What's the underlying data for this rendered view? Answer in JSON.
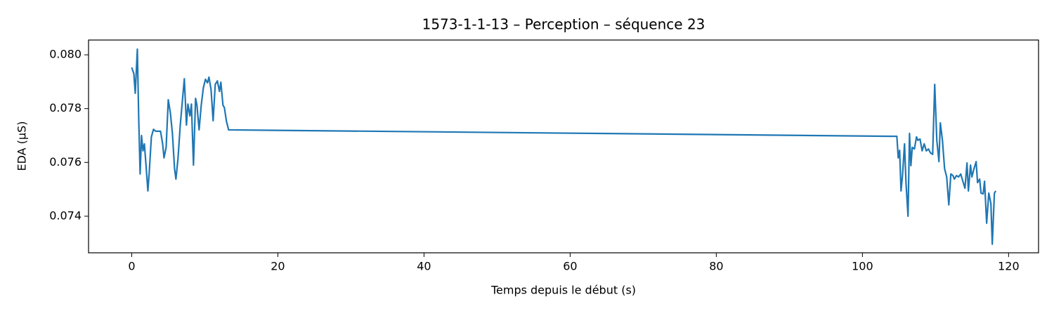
{
  "chart_data": {
    "type": "line",
    "title": "1573-1-1-13 – Perception – séquence 23",
    "x_label": "Temps depuis le début (s)",
    "y_label": "EDA (µS)",
    "x": [
      0,
      0.29,
      0.48,
      0.77,
      0.96,
      1.15,
      1.34,
      1.54,
      1.73,
      1.92,
      2.21,
      2.4,
      2.69,
      2.98,
      3.27,
      3.55,
      3.94,
      4.23,
      4.42,
      4.71,
      5.0,
      5.28,
      5.57,
      5.86,
      6.05,
      6.34,
      6.63,
      6.92,
      7.2,
      7.49,
      7.69,
      7.97,
      8.17,
      8.45,
      8.74,
      8.93,
      9.22,
      9.51,
      9.8,
      10.09,
      10.37,
      10.57,
      10.86,
      11.14,
      11.43,
      11.72,
      12.01,
      12.2,
      12.49,
      12.68,
      12.97,
      13.26,
      104.71,
      104.9,
      105.09,
      105.28,
      105.48,
      105.76,
      105.96,
      106.24,
      106.44,
      106.63,
      106.82,
      107.11,
      107.4,
      107.59,
      107.88,
      108.17,
      108.45,
      108.74,
      109.03,
      109.32,
      109.61,
      109.89,
      110.18,
      110.47,
      110.66,
      110.95,
      111.24,
      111.53,
      111.82,
      112.1,
      112.39,
      112.58,
      112.87,
      113.16,
      113.45,
      113.74,
      114.03,
      114.31,
      114.5,
      114.79,
      114.98,
      115.27,
      115.56,
      115.75,
      116.04,
      116.23,
      116.52,
      116.71,
      117.0,
      117.29,
      117.58,
      117.77,
      118.06,
      118.25
    ],
    "series": [
      {
        "name": "EDA",
        "color": "#1f77b4",
        "values": [
          0.07953,
          0.0793,
          0.07857,
          0.08021,
          0.0776,
          0.07557,
          0.077,
          0.07643,
          0.07669,
          0.07603,
          0.07494,
          0.07564,
          0.07695,
          0.07723,
          0.07716,
          0.07716,
          0.07716,
          0.07669,
          0.07617,
          0.07656,
          0.07833,
          0.07786,
          0.07708,
          0.07577,
          0.07538,
          0.07617,
          0.07734,
          0.07825,
          0.07911,
          0.07739,
          0.07817,
          0.07773,
          0.07817,
          0.0759,
          0.07838,
          0.07812,
          0.07721,
          0.07812,
          0.07877,
          0.07909,
          0.07896,
          0.07917,
          0.0787,
          0.07755,
          0.0789,
          0.07903,
          0.07864,
          0.07898,
          0.07812,
          0.07804,
          0.07752,
          0.07721,
          0.07697,
          0.07617,
          0.07645,
          0.07494,
          0.07551,
          0.07669,
          0.07525,
          0.074,
          0.07708,
          0.07588,
          0.07656,
          0.0765,
          0.07695,
          0.07682,
          0.07687,
          0.07643,
          0.07669,
          0.07643,
          0.0765,
          0.07635,
          0.0763,
          0.0789,
          0.07682,
          0.07603,
          0.07747,
          0.07682,
          0.07577,
          0.07546,
          0.07442,
          0.07557,
          0.07551,
          0.07538,
          0.07551,
          0.07546,
          0.07557,
          0.0753,
          0.07504,
          0.07598,
          0.07494,
          0.0759,
          0.07546,
          0.07577,
          0.07603,
          0.07525,
          0.07538,
          0.07486,
          0.07483,
          0.0753,
          0.07374,
          0.07486,
          0.07447,
          0.07296,
          0.07486,
          0.07494
        ]
      }
    ],
    "xlim": [
      -5.91,
      124.1
    ],
    "xticks": [
      0,
      20,
      40,
      60,
      80,
      100,
      120
    ],
    "ylim": [
      0.07264,
      0.08055
    ],
    "yticks": [
      0.074,
      0.076,
      0.078,
      {
        "value": 0.08,
        "label": "0.080"
      }
    ],
    "grid": false
  }
}
